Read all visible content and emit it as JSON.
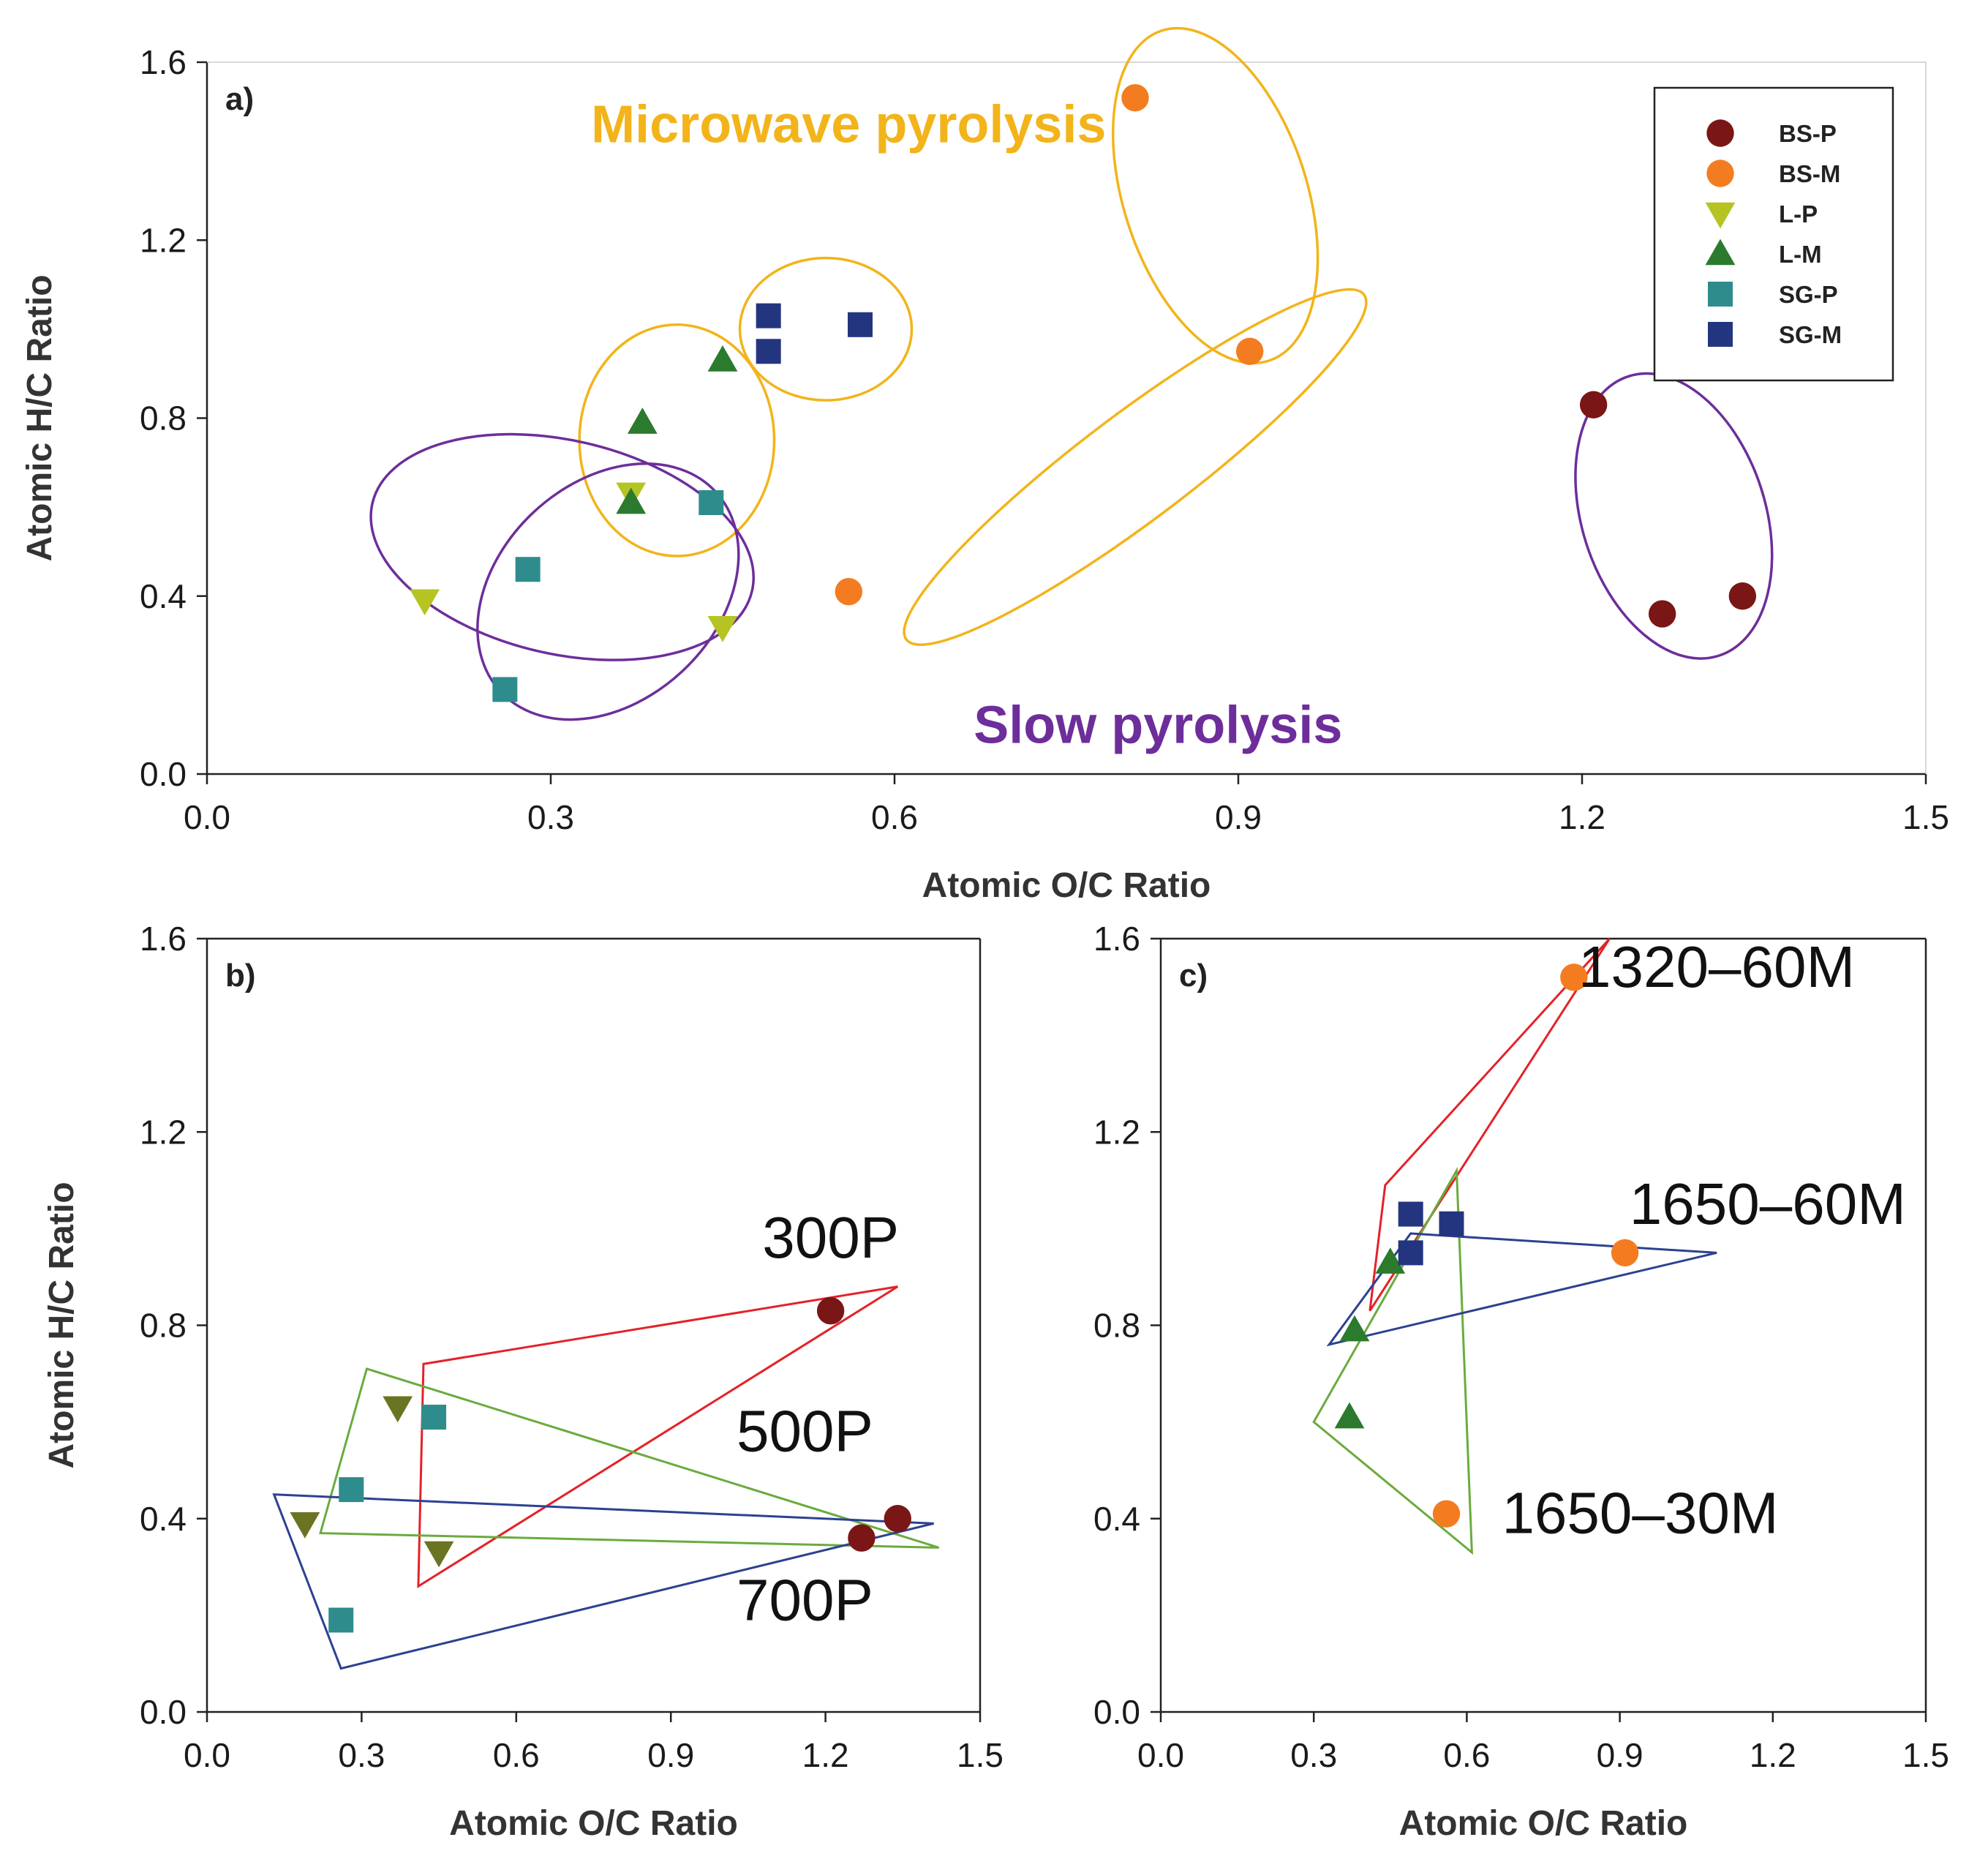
{
  "colors": {
    "BS-P": "#7a1616",
    "BS-M": "#f47c20",
    "L-P": "#b5c423",
    "L-M": "#2b7a2e",
    "SG-P": "#2e8c8c",
    "SG-M": "#24357f",
    "L-P-dark": "#6b7422",
    "microwave": "#f2b41a",
    "slow": "#6d2e9b",
    "red": "#e42228",
    "green": "#6aab3e",
    "blue": "#2d4190"
  },
  "chart_data": [
    {
      "type": "scatter",
      "panel": "a)",
      "xlabel": "Atomic O/C Ratio",
      "ylabel": "Atomic H/C Ratio",
      "xlim": [
        0.0,
        1.5
      ],
      "ylim": [
        0.0,
        1.6
      ],
      "xticks": [
        "0.0",
        "0.3",
        "0.6",
        "0.9",
        "1.2",
        "1.5"
      ],
      "yticks": [
        "0.0",
        "0.4",
        "0.8",
        "1.2",
        "1.6"
      ],
      "legend": {
        "position": "top-right",
        "entries": [
          {
            "name": "BS-P",
            "marker": "circle"
          },
          {
            "name": "BS-M",
            "marker": "circle"
          },
          {
            "name": "L-P",
            "marker": "triangle-down"
          },
          {
            "name": "L-M",
            "marker": "triangle-up"
          },
          {
            "name": "SG-P",
            "marker": "square"
          },
          {
            "name": "SG-M",
            "marker": "square"
          }
        ]
      },
      "series": [
        {
          "name": "BS-P",
          "marker": "circle",
          "points": [
            [
              1.21,
              0.83
            ],
            [
              1.27,
              0.36
            ],
            [
              1.34,
              0.4
            ]
          ]
        },
        {
          "name": "BS-M",
          "marker": "circle",
          "points": [
            [
              0.81,
              1.52
            ],
            [
              0.91,
              0.95
            ],
            [
              0.56,
              0.41
            ]
          ]
        },
        {
          "name": "L-P",
          "marker": "triangle-down",
          "points": [
            [
              0.19,
              0.39
            ],
            [
              0.37,
              0.63
            ],
            [
              0.45,
              0.33
            ]
          ]
        },
        {
          "name": "L-M",
          "marker": "triangle-up",
          "points": [
            [
              0.38,
              0.79
            ],
            [
              0.45,
              0.93
            ],
            [
              0.37,
              0.61
            ]
          ]
        },
        {
          "name": "SG-P",
          "marker": "square",
          "points": [
            [
              0.28,
              0.46
            ],
            [
              0.44,
              0.61
            ],
            [
              0.26,
              0.19
            ]
          ]
        },
        {
          "name": "SG-M",
          "marker": "square",
          "points": [
            [
              0.49,
              1.03
            ],
            [
              0.49,
              0.95
            ],
            [
              0.57,
              1.01
            ]
          ]
        }
      ],
      "annotations": [
        {
          "text": "Microwave pyrolysis",
          "x": 0.56,
          "y": 1.42,
          "color": "microwave"
        },
        {
          "text": "Slow pyrolysis",
          "x": 0.83,
          "y": 0.07,
          "color": "slow"
        }
      ],
      "ellipses": [
        {
          "group": "microwave",
          "cx": 0.41,
          "cy": 0.75,
          "rx": 0.085,
          "ry": 0.26,
          "angle": 0
        },
        {
          "group": "microwave",
          "cx": 0.54,
          "cy": 1.0,
          "rx": 0.075,
          "ry": 0.16,
          "angle": 0
        },
        {
          "group": "microwave",
          "cx": 0.88,
          "cy": 1.3,
          "rx": 0.08,
          "ry": 0.39,
          "angle": -18
        },
        {
          "group": "microwave",
          "cx": 0.81,
          "cy": 0.69,
          "rx": 0.25,
          "ry": 0.12,
          "angle": -37
        },
        {
          "group": "slow",
          "cx": 0.31,
          "cy": 0.51,
          "rx": 0.17,
          "ry": 0.24,
          "angle": 13
        },
        {
          "group": "slow",
          "cx": 0.35,
          "cy": 0.41,
          "rx": 0.095,
          "ry": 0.33,
          "angle": 47
        },
        {
          "group": "slow",
          "cx": 1.28,
          "cy": 0.58,
          "rx": 0.08,
          "ry": 0.33,
          "angle": -18
        }
      ]
    },
    {
      "type": "scatter",
      "panel": "b)",
      "xlabel": "Atomic O/C Ratio",
      "ylabel": "Atomic H/C Ratio",
      "xlim": [
        0.0,
        1.5
      ],
      "ylim": [
        0.0,
        1.6
      ],
      "xticks": [
        "0.0",
        "0.3",
        "0.6",
        "0.9",
        "1.2",
        "1.5"
      ],
      "yticks": [
        "0.0",
        "0.4",
        "0.8",
        "1.2",
        "1.6"
      ],
      "series": [
        {
          "name": "BS-P",
          "marker": "circle",
          "points": [
            [
              1.21,
              0.83
            ],
            [
              1.27,
              0.36
            ],
            [
              1.34,
              0.4
            ]
          ]
        },
        {
          "name": "L-P",
          "marker": "triangle-down",
          "points": [
            [
              0.19,
              0.39
            ],
            [
              0.37,
              0.63
            ],
            [
              0.45,
              0.33
            ]
          ]
        },
        {
          "name": "SG-P",
          "marker": "square",
          "points": [
            [
              0.28,
              0.46
            ],
            [
              0.44,
              0.61
            ],
            [
              0.26,
              0.19
            ]
          ]
        }
      ],
      "polygons": [
        {
          "color": "red",
          "points": [
            [
              0.42,
              0.72
            ],
            [
              1.34,
              0.88
            ],
            [
              0.41,
              0.26
            ]
          ]
        },
        {
          "color": "green",
          "points": [
            [
              0.31,
              0.71
            ],
            [
              1.42,
              0.34
            ],
            [
              0.22,
              0.37
            ]
          ]
        },
        {
          "color": "blue",
          "points": [
            [
              0.13,
              0.45
            ],
            [
              1.41,
              0.39
            ],
            [
              0.26,
              0.09
            ]
          ]
        }
      ],
      "labels": [
        {
          "text": "300P",
          "x": 1.21,
          "y": 0.94
        },
        {
          "text": "500P",
          "x": 1.16,
          "y": 0.54
        },
        {
          "text": "700P",
          "x": 1.16,
          "y": 0.19
        }
      ]
    },
    {
      "type": "scatter",
      "panel": "c)",
      "xlabel": "Atomic O/C Ratio",
      "ylabel": "",
      "xlim": [
        0.0,
        1.5
      ],
      "ylim": [
        0.0,
        1.6
      ],
      "xticks": [
        "0.0",
        "0.3",
        "0.6",
        "0.9",
        "1.2",
        "1.5"
      ],
      "yticks": [
        "0.0",
        "0.4",
        "0.8",
        "1.2",
        "1.6"
      ],
      "series": [
        {
          "name": "BS-M",
          "marker": "circle",
          "points": [
            [
              0.81,
              1.52
            ],
            [
              0.91,
              0.95
            ],
            [
              0.56,
              0.41
            ]
          ]
        },
        {
          "name": "L-M",
          "marker": "triangle-up",
          "points": [
            [
              0.38,
              0.79
            ],
            [
              0.45,
              0.93
            ],
            [
              0.37,
              0.61
            ]
          ]
        },
        {
          "name": "SG-M",
          "marker": "square",
          "points": [
            [
              0.49,
              1.03
            ],
            [
              0.49,
              0.95
            ],
            [
              0.57,
              1.01
            ]
          ]
        }
      ],
      "polygons": [
        {
          "color": "red",
          "points": [
            [
              0.44,
              1.09
            ],
            [
              0.88,
              1.6
            ],
            [
              0.41,
              0.83
            ]
          ]
        },
        {
          "color": "green",
          "points": [
            [
              0.58,
              1.12
            ],
            [
              0.61,
              0.33
            ],
            [
              0.3,
              0.6
            ]
          ]
        },
        {
          "color": "blue",
          "points": [
            [
              0.33,
              0.76
            ],
            [
              1.09,
              0.95
            ],
            [
              0.49,
              0.99
            ]
          ]
        }
      ],
      "labels": [
        {
          "text": "1320–60M",
          "x": 1.09,
          "y": 1.5
        },
        {
          "text": "1650–60M",
          "x": 1.19,
          "y": 1.01
        },
        {
          "text": "1650–30M",
          "x": 0.94,
          "y": 0.37
        }
      ]
    }
  ]
}
